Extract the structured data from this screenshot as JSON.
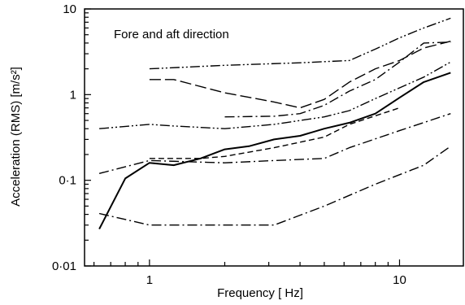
{
  "chart_data": {
    "type": "line",
    "xscale": "log",
    "yscale": "log",
    "xlim": [
      0.55,
      18
    ],
    "ylim": [
      0.01,
      10
    ],
    "xlabel": "Frequency  [ Hz]",
    "ylabel": "Acceleration (RMS)  [m/s²]",
    "annotation": "Fore and aft direction",
    "grid": false,
    "xticks": [
      {
        "value": 1,
        "label": "1"
      },
      {
        "value": 10,
        "label": "10"
      }
    ],
    "yticks": [
      {
        "value": 0.01,
        "label": "0·01"
      },
      {
        "value": 0.1,
        "label": "0·1"
      },
      {
        "value": 1,
        "label": "1"
      },
      {
        "value": 10,
        "label": "10"
      }
    ],
    "series": [
      {
        "style": "solid",
        "x": [
          0.63,
          0.8,
          1.0,
          1.25,
          1.6,
          2.0,
          2.5,
          3.15,
          4.0,
          5.0,
          6.3,
          8.0,
          10.0,
          12.5,
          16.0
        ],
        "y": [
          0.027,
          0.105,
          0.16,
          0.15,
          0.18,
          0.23,
          0.25,
          0.3,
          0.33,
          0.4,
          0.47,
          0.6,
          0.92,
          1.4,
          1.8
        ]
      },
      {
        "style": "dash-dot-dot",
        "x": [
          1.0,
          2.0,
          4.0,
          6.3,
          8.0,
          10.0,
          12.5,
          16.0
        ],
        "y": [
          2.0,
          2.2,
          2.35,
          2.5,
          3.4,
          4.6,
          6.0,
          7.8
        ]
      },
      {
        "style": "long-dash",
        "x": [
          1.0,
          1.25,
          2.0,
          3.15,
          4.0,
          5.0,
          6.3,
          8.0,
          10.0,
          12.5,
          16.0
        ],
        "y": [
          1.5,
          1.5,
          1.05,
          0.82,
          0.7,
          0.88,
          1.4,
          2.0,
          2.5,
          3.5,
          4.2
        ]
      },
      {
        "style": "dash-dot",
        "x": [
          2.0,
          3.15,
          4.0,
          5.0,
          6.3,
          8.0,
          10.0,
          12.5,
          16.0
        ],
        "y": [
          0.55,
          0.56,
          0.6,
          0.75,
          1.1,
          1.5,
          2.4,
          4.0,
          4.1
        ]
      },
      {
        "style": "dash-dot-dot",
        "x": [
          0.63,
          1.0,
          1.25,
          2.0,
          3.15,
          5.0,
          6.3,
          8.0,
          10.0,
          12.5,
          16.0
        ],
        "y": [
          0.4,
          0.45,
          0.43,
          0.4,
          0.45,
          0.55,
          0.65,
          0.9,
          1.2,
          1.6,
          2.4
        ]
      },
      {
        "style": "dash",
        "x": [
          1.0,
          1.6,
          2.0,
          3.15,
          5.0,
          6.3,
          10.0
        ],
        "y": [
          0.18,
          0.18,
          0.19,
          0.24,
          0.32,
          0.45,
          0.7
        ]
      },
      {
        "style": "dash-dot",
        "x": [
          0.63,
          1.0,
          2.0,
          3.15,
          5.0,
          6.3,
          10.0,
          16.0
        ],
        "y": [
          0.12,
          0.17,
          0.16,
          0.17,
          0.18,
          0.24,
          0.38,
          0.6
        ]
      },
      {
        "style": "dash-dot",
        "x": [
          0.63,
          1.0,
          1.6,
          3.15,
          5.0,
          8.0,
          12.5,
          16.0
        ],
        "y": [
          0.041,
          0.03,
          0.03,
          0.03,
          0.05,
          0.09,
          0.15,
          0.25
        ]
      }
    ]
  }
}
